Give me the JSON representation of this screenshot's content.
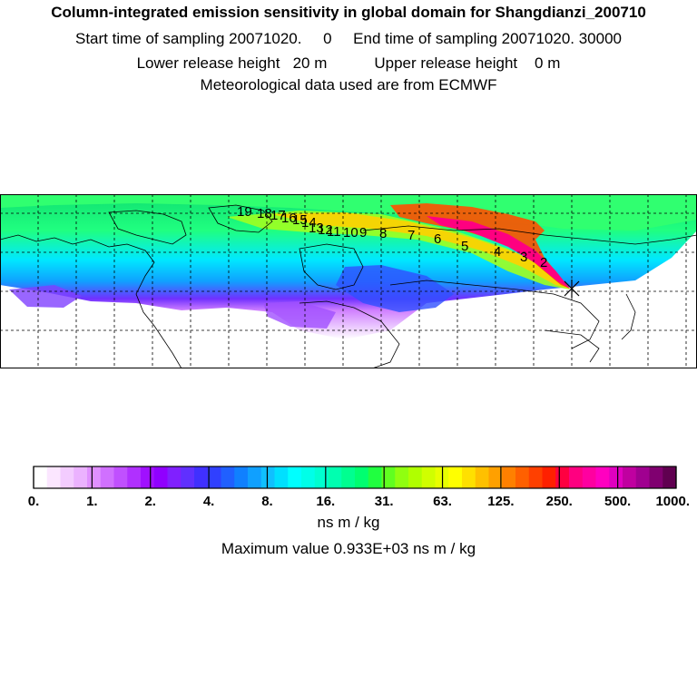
{
  "header": {
    "title": "Column-integrated emission sensitivity in global domain for Shangdianzi_200710",
    "line2": "Start time of sampling 20071020.     0     End time of sampling 20071020. 30000",
    "line3": "Lower release height   20 m           Upper release height    0 m",
    "line4": "Meteorological data used are from ECMWF"
  },
  "map": {
    "station_marker": "Shangdianzi",
    "trajectory_labels": [
      "2",
      "3",
      "4",
      "5",
      "6",
      "7",
      "8",
      "9",
      "10",
      "11",
      "12",
      "13",
      "14",
      "15",
      "16",
      "17",
      "18",
      "19"
    ],
    "grid": "dashed lat/lon lines",
    "colors": {
      "land_outline": "#000000",
      "high_path": "#ff0060",
      "mid": "#ffe000",
      "low": "#00ffe0",
      "lowest": "#c040ff"
    }
  },
  "colorbar": {
    "tick_labels": [
      "0.",
      "1.",
      "2.",
      "4.",
      "8.",
      "16.",
      "31.",
      "63.",
      "125.",
      "250.",
      "500.",
      "1000."
    ],
    "colors": [
      "#ffffff",
      "#fbe6ff",
      "#f3ccff",
      "#ebb2ff",
      "#e090ff",
      "#d070ff",
      "#c050ff",
      "#b030ff",
      "#a010ff",
      "#9000ff",
      "#8020ff",
      "#6030ff",
      "#4030ff",
      "#3040ff",
      "#2060ff",
      "#1080ff",
      "#10a0ff",
      "#10c0ff",
      "#00e0ff",
      "#00ffff",
      "#00ffe8",
      "#00ffd0",
      "#00ffb0",
      "#00ff90",
      "#00ff70",
      "#20ff40",
      "#60ff20",
      "#90ff10",
      "#b0ff00",
      "#d0ff00",
      "#e8ff00",
      "#ffff00",
      "#ffe000",
      "#ffc000",
      "#ffa000",
      "#ff8000",
      "#ff6000",
      "#ff4000",
      "#ff2000",
      "#ff0040",
      "#ff0080",
      "#ff00a0",
      "#ff00c0",
      "#e000c0",
      "#c000a0",
      "#a00090",
      "#800070",
      "#600050"
    ],
    "unit": "ns m / kg",
    "max_value_text": "Maximum value  0.933E+03 ns m / kg"
  }
}
